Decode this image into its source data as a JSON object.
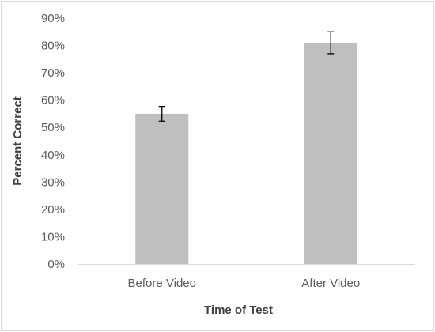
{
  "chart_data": {
    "type": "bar",
    "title": "",
    "xlabel": "Time of Test",
    "ylabel": "Percent Correct",
    "categories": [
      "Before Video",
      "After Video"
    ],
    "values": [
      55,
      81
    ],
    "error": [
      2.7,
      4
    ],
    "ylim": [
      0,
      90
    ],
    "yticks": [
      0,
      10,
      20,
      30,
      40,
      50,
      60,
      70,
      80,
      90
    ],
    "ytick_labels": [
      "0%",
      "10%",
      "20%",
      "30%",
      "40%",
      "50%",
      "60%",
      "70%",
      "80%",
      "90%"
    ],
    "grid": false,
    "legend": "none",
    "colors": {
      "bar": "#bfbfbf",
      "axis": "#d9d9d9",
      "error_bar": "#000000"
    }
  }
}
